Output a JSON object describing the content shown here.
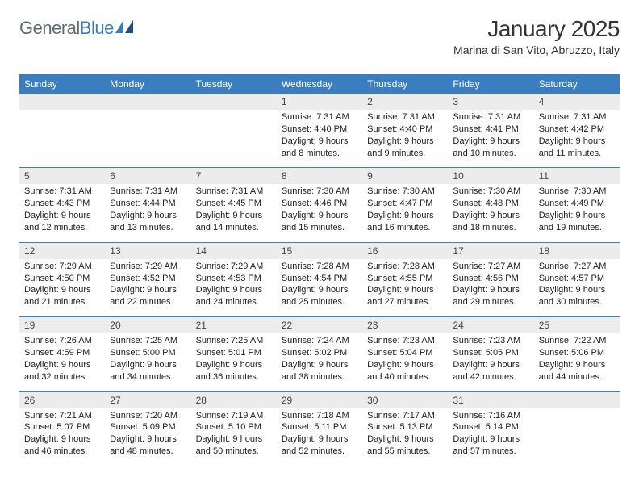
{
  "brand": {
    "name_part1": "General",
    "name_part2": "Blue",
    "text_color": "#5f6a72",
    "accent_color": "#3a7ebf"
  },
  "header": {
    "title": "January 2025",
    "location": "Marina di San Vito, Abruzzo, Italy"
  },
  "calendar": {
    "header_bg": "#3a7ebf",
    "day_bg": "#ececec",
    "days_of_week": [
      "Sunday",
      "Monday",
      "Tuesday",
      "Wednesday",
      "Thursday",
      "Friday",
      "Saturday"
    ],
    "weeks": [
      [
        {
          "n": "",
          "sunrise": "",
          "sunset": "",
          "daylight": ""
        },
        {
          "n": "",
          "sunrise": "",
          "sunset": "",
          "daylight": ""
        },
        {
          "n": "",
          "sunrise": "",
          "sunset": "",
          "daylight": ""
        },
        {
          "n": "1",
          "sunrise": "Sunrise: 7:31 AM",
          "sunset": "Sunset: 4:40 PM",
          "daylight": "Daylight: 9 hours and 8 minutes."
        },
        {
          "n": "2",
          "sunrise": "Sunrise: 7:31 AM",
          "sunset": "Sunset: 4:40 PM",
          "daylight": "Daylight: 9 hours and 9 minutes."
        },
        {
          "n": "3",
          "sunrise": "Sunrise: 7:31 AM",
          "sunset": "Sunset: 4:41 PM",
          "daylight": "Daylight: 9 hours and 10 minutes."
        },
        {
          "n": "4",
          "sunrise": "Sunrise: 7:31 AM",
          "sunset": "Sunset: 4:42 PM",
          "daylight": "Daylight: 9 hours and 11 minutes."
        }
      ],
      [
        {
          "n": "5",
          "sunrise": "Sunrise: 7:31 AM",
          "sunset": "Sunset: 4:43 PM",
          "daylight": "Daylight: 9 hours and 12 minutes."
        },
        {
          "n": "6",
          "sunrise": "Sunrise: 7:31 AM",
          "sunset": "Sunset: 4:44 PM",
          "daylight": "Daylight: 9 hours and 13 minutes."
        },
        {
          "n": "7",
          "sunrise": "Sunrise: 7:31 AM",
          "sunset": "Sunset: 4:45 PM",
          "daylight": "Daylight: 9 hours and 14 minutes."
        },
        {
          "n": "8",
          "sunrise": "Sunrise: 7:30 AM",
          "sunset": "Sunset: 4:46 PM",
          "daylight": "Daylight: 9 hours and 15 minutes."
        },
        {
          "n": "9",
          "sunrise": "Sunrise: 7:30 AM",
          "sunset": "Sunset: 4:47 PM",
          "daylight": "Daylight: 9 hours and 16 minutes."
        },
        {
          "n": "10",
          "sunrise": "Sunrise: 7:30 AM",
          "sunset": "Sunset: 4:48 PM",
          "daylight": "Daylight: 9 hours and 18 minutes."
        },
        {
          "n": "11",
          "sunrise": "Sunrise: 7:30 AM",
          "sunset": "Sunset: 4:49 PM",
          "daylight": "Daylight: 9 hours and 19 minutes."
        }
      ],
      [
        {
          "n": "12",
          "sunrise": "Sunrise: 7:29 AM",
          "sunset": "Sunset: 4:50 PM",
          "daylight": "Daylight: 9 hours and 21 minutes."
        },
        {
          "n": "13",
          "sunrise": "Sunrise: 7:29 AM",
          "sunset": "Sunset: 4:52 PM",
          "daylight": "Daylight: 9 hours and 22 minutes."
        },
        {
          "n": "14",
          "sunrise": "Sunrise: 7:29 AM",
          "sunset": "Sunset: 4:53 PM",
          "daylight": "Daylight: 9 hours and 24 minutes."
        },
        {
          "n": "15",
          "sunrise": "Sunrise: 7:28 AM",
          "sunset": "Sunset: 4:54 PM",
          "daylight": "Daylight: 9 hours and 25 minutes."
        },
        {
          "n": "16",
          "sunrise": "Sunrise: 7:28 AM",
          "sunset": "Sunset: 4:55 PM",
          "daylight": "Daylight: 9 hours and 27 minutes."
        },
        {
          "n": "17",
          "sunrise": "Sunrise: 7:27 AM",
          "sunset": "Sunset: 4:56 PM",
          "daylight": "Daylight: 9 hours and 29 minutes."
        },
        {
          "n": "18",
          "sunrise": "Sunrise: 7:27 AM",
          "sunset": "Sunset: 4:57 PM",
          "daylight": "Daylight: 9 hours and 30 minutes."
        }
      ],
      [
        {
          "n": "19",
          "sunrise": "Sunrise: 7:26 AM",
          "sunset": "Sunset: 4:59 PM",
          "daylight": "Daylight: 9 hours and 32 minutes."
        },
        {
          "n": "20",
          "sunrise": "Sunrise: 7:25 AM",
          "sunset": "Sunset: 5:00 PM",
          "daylight": "Daylight: 9 hours and 34 minutes."
        },
        {
          "n": "21",
          "sunrise": "Sunrise: 7:25 AM",
          "sunset": "Sunset: 5:01 PM",
          "daylight": "Daylight: 9 hours and 36 minutes."
        },
        {
          "n": "22",
          "sunrise": "Sunrise: 7:24 AM",
          "sunset": "Sunset: 5:02 PM",
          "daylight": "Daylight: 9 hours and 38 minutes."
        },
        {
          "n": "23",
          "sunrise": "Sunrise: 7:23 AM",
          "sunset": "Sunset: 5:04 PM",
          "daylight": "Daylight: 9 hours and 40 minutes."
        },
        {
          "n": "24",
          "sunrise": "Sunrise: 7:23 AM",
          "sunset": "Sunset: 5:05 PM",
          "daylight": "Daylight: 9 hours and 42 minutes."
        },
        {
          "n": "25",
          "sunrise": "Sunrise: 7:22 AM",
          "sunset": "Sunset: 5:06 PM",
          "daylight": "Daylight: 9 hours and 44 minutes."
        }
      ],
      [
        {
          "n": "26",
          "sunrise": "Sunrise: 7:21 AM",
          "sunset": "Sunset: 5:07 PM",
          "daylight": "Daylight: 9 hours and 46 minutes."
        },
        {
          "n": "27",
          "sunrise": "Sunrise: 7:20 AM",
          "sunset": "Sunset: 5:09 PM",
          "daylight": "Daylight: 9 hours and 48 minutes."
        },
        {
          "n": "28",
          "sunrise": "Sunrise: 7:19 AM",
          "sunset": "Sunset: 5:10 PM",
          "daylight": "Daylight: 9 hours and 50 minutes."
        },
        {
          "n": "29",
          "sunrise": "Sunrise: 7:18 AM",
          "sunset": "Sunset: 5:11 PM",
          "daylight": "Daylight: 9 hours and 52 minutes."
        },
        {
          "n": "30",
          "sunrise": "Sunrise: 7:17 AM",
          "sunset": "Sunset: 5:13 PM",
          "daylight": "Daylight: 9 hours and 55 minutes."
        },
        {
          "n": "31",
          "sunrise": "Sunrise: 7:16 AM",
          "sunset": "Sunset: 5:14 PM",
          "daylight": "Daylight: 9 hours and 57 minutes."
        },
        {
          "n": "",
          "sunrise": "",
          "sunset": "",
          "daylight": ""
        }
      ]
    ]
  }
}
